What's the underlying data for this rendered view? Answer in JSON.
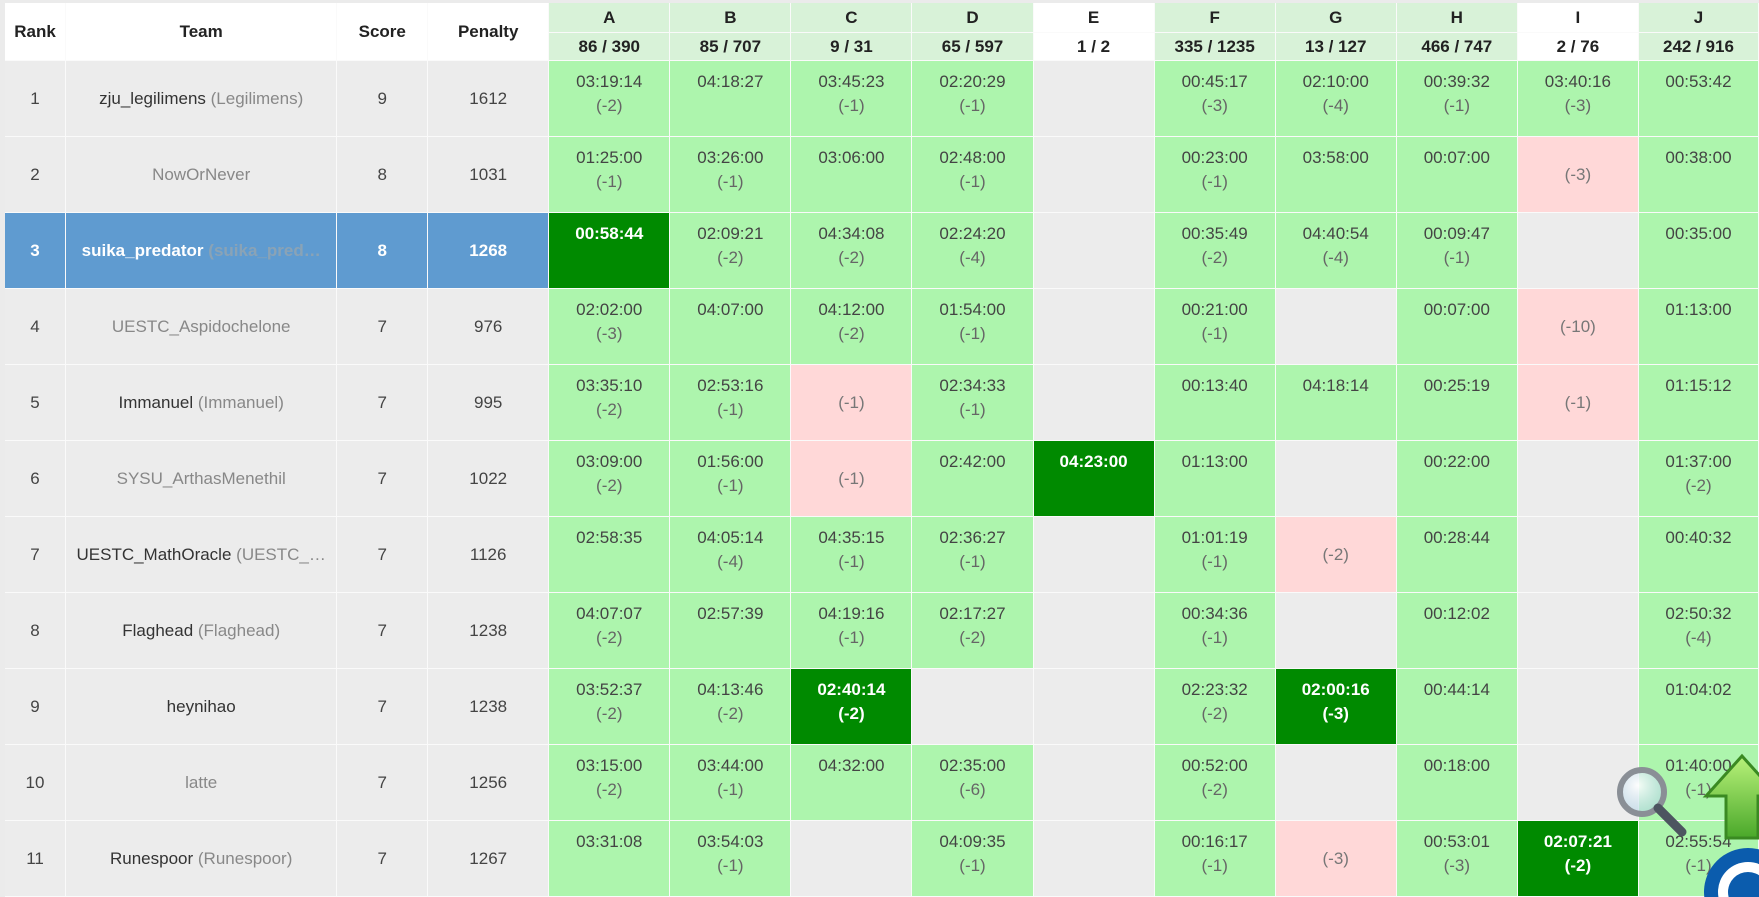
{
  "header": {
    "rank": "Rank",
    "team": "Team",
    "score": "Score",
    "penalty": "Penalty",
    "problems": [
      {
        "id": "A",
        "count": "86 / 390"
      },
      {
        "id": "B",
        "count": "85 / 707"
      },
      {
        "id": "C",
        "count": "9 / 31"
      },
      {
        "id": "D",
        "count": "65 / 597"
      },
      {
        "id": "E",
        "count": "1 / 2"
      },
      {
        "id": "F",
        "count": "335 / 1235"
      },
      {
        "id": "G",
        "count": "13 / 127"
      },
      {
        "id": "H",
        "count": "466 / 747"
      },
      {
        "id": "I",
        "count": "2 / 76"
      },
      {
        "id": "J",
        "count": "242 / 916"
      }
    ]
  },
  "rows": [
    {
      "rank": "1",
      "team": "zju_legilimens",
      "org": "(Legilimens)",
      "score": "9",
      "penalty": "1612",
      "cells": [
        {
          "s": "ac",
          "t": "03:19:14",
          "tr": "(-2)"
        },
        {
          "s": "ac",
          "t": "04:18:27",
          "tr": ""
        },
        {
          "s": "ac",
          "t": "03:45:23",
          "tr": "(-1)"
        },
        {
          "s": "ac",
          "t": "02:20:29",
          "tr": "(-1)"
        },
        {
          "s": "empty",
          "t": "",
          "tr": ""
        },
        {
          "s": "ac",
          "t": "00:45:17",
          "tr": "(-3)"
        },
        {
          "s": "ac",
          "t": "02:10:00",
          "tr": "(-4)"
        },
        {
          "s": "ac",
          "t": "00:39:32",
          "tr": "(-1)"
        },
        {
          "s": "ac",
          "t": "03:40:16",
          "tr": "(-3)"
        },
        {
          "s": "ac",
          "t": "00:53:42",
          "tr": ""
        }
      ]
    },
    {
      "rank": "2",
      "team": "NowOrNever",
      "org": "",
      "score": "8",
      "penalty": "1031",
      "muted": true,
      "cells": [
        {
          "s": "ac",
          "t": "01:25:00",
          "tr": "(-1)"
        },
        {
          "s": "ac",
          "t": "03:26:00",
          "tr": "(-1)"
        },
        {
          "s": "ac",
          "t": "03:06:00",
          "tr": ""
        },
        {
          "s": "ac",
          "t": "02:48:00",
          "tr": "(-1)"
        },
        {
          "s": "empty",
          "t": "",
          "tr": ""
        },
        {
          "s": "ac",
          "t": "00:23:00",
          "tr": "(-1)"
        },
        {
          "s": "ac",
          "t": "03:58:00",
          "tr": ""
        },
        {
          "s": "ac",
          "t": "00:07:00",
          "tr": ""
        },
        {
          "s": "wa",
          "t": "",
          "tr": "(-3)"
        },
        {
          "s": "ac",
          "t": "00:38:00",
          "tr": ""
        }
      ]
    },
    {
      "rank": "3",
      "team": "suika_predator",
      "org": "(suika_pred…",
      "score": "8",
      "penalty": "1268",
      "selected": true,
      "cells": [
        {
          "s": "fb",
          "t": "00:58:44",
          "tr": ""
        },
        {
          "s": "ac",
          "t": "02:09:21",
          "tr": "(-2)"
        },
        {
          "s": "ac",
          "t": "04:34:08",
          "tr": "(-2)"
        },
        {
          "s": "ac",
          "t": "02:24:20",
          "tr": "(-4)"
        },
        {
          "s": "empty",
          "t": "",
          "tr": ""
        },
        {
          "s": "ac",
          "t": "00:35:49",
          "tr": "(-2)"
        },
        {
          "s": "ac",
          "t": "04:40:54",
          "tr": "(-4)"
        },
        {
          "s": "ac",
          "t": "00:09:47",
          "tr": "(-1)"
        },
        {
          "s": "empty",
          "t": "",
          "tr": ""
        },
        {
          "s": "ac",
          "t": "00:35:00",
          "tr": ""
        }
      ]
    },
    {
      "rank": "4",
      "team": "UESTC_Aspidochelone",
      "org": "",
      "score": "7",
      "penalty": "976",
      "muted": true,
      "cells": [
        {
          "s": "ac",
          "t": "02:02:00",
          "tr": "(-3)"
        },
        {
          "s": "ac",
          "t": "04:07:00",
          "tr": ""
        },
        {
          "s": "ac",
          "t": "04:12:00",
          "tr": "(-2)"
        },
        {
          "s": "ac",
          "t": "01:54:00",
          "tr": "(-1)"
        },
        {
          "s": "empty",
          "t": "",
          "tr": ""
        },
        {
          "s": "ac",
          "t": "00:21:00",
          "tr": "(-1)"
        },
        {
          "s": "empty",
          "t": "",
          "tr": ""
        },
        {
          "s": "ac",
          "t": "00:07:00",
          "tr": ""
        },
        {
          "s": "wa",
          "t": "",
          "tr": "(-10)"
        },
        {
          "s": "ac",
          "t": "01:13:00",
          "tr": ""
        }
      ]
    },
    {
      "rank": "5",
      "team": "Immanuel",
      "org": "(Immanuel)",
      "score": "7",
      "penalty": "995",
      "cells": [
        {
          "s": "ac",
          "t": "03:35:10",
          "tr": "(-2)"
        },
        {
          "s": "ac",
          "t": "02:53:16",
          "tr": "(-1)"
        },
        {
          "s": "wa",
          "t": "",
          "tr": "(-1)"
        },
        {
          "s": "ac",
          "t": "02:34:33",
          "tr": "(-1)"
        },
        {
          "s": "empty",
          "t": "",
          "tr": ""
        },
        {
          "s": "ac",
          "t": "00:13:40",
          "tr": ""
        },
        {
          "s": "ac",
          "t": "04:18:14",
          "tr": ""
        },
        {
          "s": "ac",
          "t": "00:25:19",
          "tr": ""
        },
        {
          "s": "wa",
          "t": "",
          "tr": "(-1)"
        },
        {
          "s": "ac",
          "t": "01:15:12",
          "tr": ""
        }
      ]
    },
    {
      "rank": "6",
      "team": "SYSU_ArthasMenethil",
      "org": "",
      "score": "7",
      "penalty": "1022",
      "muted": true,
      "cells": [
        {
          "s": "ac",
          "t": "03:09:00",
          "tr": "(-2)"
        },
        {
          "s": "ac",
          "t": "01:56:00",
          "tr": "(-1)"
        },
        {
          "s": "wa",
          "t": "",
          "tr": "(-1)"
        },
        {
          "s": "ac",
          "t": "02:42:00",
          "tr": ""
        },
        {
          "s": "fb",
          "t": "04:23:00",
          "tr": ""
        },
        {
          "s": "ac",
          "t": "01:13:00",
          "tr": ""
        },
        {
          "s": "empty",
          "t": "",
          "tr": ""
        },
        {
          "s": "ac",
          "t": "00:22:00",
          "tr": ""
        },
        {
          "s": "empty",
          "t": "",
          "tr": ""
        },
        {
          "s": "ac",
          "t": "01:37:00",
          "tr": "(-2)"
        }
      ]
    },
    {
      "rank": "7",
      "team": "UESTC_MathOracle",
      "org": "(UESTC_…",
      "score": "7",
      "penalty": "1126",
      "cells": [
        {
          "s": "ac",
          "t": "02:58:35",
          "tr": ""
        },
        {
          "s": "ac",
          "t": "04:05:14",
          "tr": "(-4)"
        },
        {
          "s": "ac",
          "t": "04:35:15",
          "tr": "(-1)"
        },
        {
          "s": "ac",
          "t": "02:36:27",
          "tr": "(-1)"
        },
        {
          "s": "empty",
          "t": "",
          "tr": ""
        },
        {
          "s": "ac",
          "t": "01:01:19",
          "tr": "(-1)"
        },
        {
          "s": "wa",
          "t": "",
          "tr": "(-2)"
        },
        {
          "s": "ac",
          "t": "00:28:44",
          "tr": ""
        },
        {
          "s": "empty",
          "t": "",
          "tr": ""
        },
        {
          "s": "ac",
          "t": "00:40:32",
          "tr": ""
        }
      ]
    },
    {
      "rank": "8",
      "team": "Flaghead",
      "org": "(Flaghead)",
      "score": "7",
      "penalty": "1238",
      "cells": [
        {
          "s": "ac",
          "t": "04:07:07",
          "tr": "(-2)"
        },
        {
          "s": "ac",
          "t": "02:57:39",
          "tr": ""
        },
        {
          "s": "ac",
          "t": "04:19:16",
          "tr": "(-1)"
        },
        {
          "s": "ac",
          "t": "02:17:27",
          "tr": "(-2)"
        },
        {
          "s": "empty",
          "t": "",
          "tr": ""
        },
        {
          "s": "ac",
          "t": "00:34:36",
          "tr": "(-1)"
        },
        {
          "s": "empty",
          "t": "",
          "tr": ""
        },
        {
          "s": "ac",
          "t": "00:12:02",
          "tr": ""
        },
        {
          "s": "empty",
          "t": "",
          "tr": ""
        },
        {
          "s": "ac",
          "t": "02:50:32",
          "tr": "(-4)"
        }
      ]
    },
    {
      "rank": "9",
      "team": "heynihao",
      "org": "",
      "score": "7",
      "penalty": "1238",
      "cells": [
        {
          "s": "ac",
          "t": "03:52:37",
          "tr": "(-2)"
        },
        {
          "s": "ac",
          "t": "04:13:46",
          "tr": "(-2)"
        },
        {
          "s": "fb",
          "t": "02:40:14",
          "tr": "(-2)"
        },
        {
          "s": "empty",
          "t": "",
          "tr": ""
        },
        {
          "s": "empty",
          "t": "",
          "tr": ""
        },
        {
          "s": "ac",
          "t": "02:23:32",
          "tr": "(-2)"
        },
        {
          "s": "fb",
          "t": "02:00:16",
          "tr": "(-3)"
        },
        {
          "s": "ac",
          "t": "00:44:14",
          "tr": ""
        },
        {
          "s": "empty",
          "t": "",
          "tr": ""
        },
        {
          "s": "ac",
          "t": "01:04:02",
          "tr": ""
        }
      ]
    },
    {
      "rank": "10",
      "team": "latte",
      "org": "",
      "score": "7",
      "penalty": "1256",
      "muted": true,
      "cells": [
        {
          "s": "ac",
          "t": "03:15:00",
          "tr": "(-2)"
        },
        {
          "s": "ac",
          "t": "03:44:00",
          "tr": "(-1)"
        },
        {
          "s": "ac",
          "t": "04:32:00",
          "tr": ""
        },
        {
          "s": "ac",
          "t": "02:35:00",
          "tr": "(-6)"
        },
        {
          "s": "empty",
          "t": "",
          "tr": ""
        },
        {
          "s": "ac",
          "t": "00:52:00",
          "tr": "(-2)"
        },
        {
          "s": "empty",
          "t": "",
          "tr": ""
        },
        {
          "s": "ac",
          "t": "00:18:00",
          "tr": ""
        },
        {
          "s": "empty",
          "t": "",
          "tr": ""
        },
        {
          "s": "ac",
          "t": "01:40:00",
          "tr": "(-1)"
        }
      ]
    },
    {
      "rank": "11",
      "team": "Runespoor",
      "org": "(Runespoor)",
      "score": "7",
      "penalty": "1267",
      "cells": [
        {
          "s": "ac",
          "t": "03:31:08",
          "tr": ""
        },
        {
          "s": "ac",
          "t": "03:54:03",
          "tr": "(-1)"
        },
        {
          "s": "empty",
          "t": "",
          "tr": ""
        },
        {
          "s": "ac",
          "t": "04:09:35",
          "tr": "(-1)"
        },
        {
          "s": "empty",
          "t": "",
          "tr": ""
        },
        {
          "s": "ac",
          "t": "00:16:17",
          "tr": "(-1)"
        },
        {
          "s": "wa",
          "t": "",
          "tr": "(-3)"
        },
        {
          "s": "ac",
          "t": "00:53:01",
          "tr": "(-3)"
        },
        {
          "s": "fb",
          "t": "02:07:21",
          "tr": "(-2)"
        },
        {
          "s": "ac",
          "t": "02:55:54",
          "tr": "(-1)"
        }
      ]
    }
  ],
  "colors": {
    "accepted": "#adf5ad",
    "first_blood": "#008a00",
    "rejected": "#ffd8d8",
    "selected_row": "#5f9bd0",
    "background": "#ebebeb"
  },
  "widgets": {
    "zoom": "magnifier-icon",
    "scroll_top": "up-arrow-icon",
    "badge": "badge-icon"
  }
}
